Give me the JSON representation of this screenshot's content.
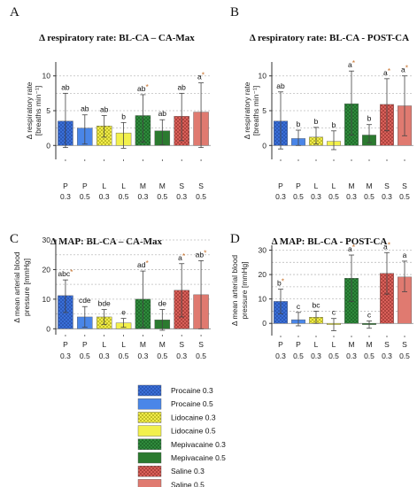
{
  "panels": [
    {
      "letter": "A",
      "title": "Δ respiratory rate: BL-CA – CA-Max",
      "ylabel": [
        "Δ respiratory rate",
        "[breaths min⁻¹]"
      ],
      "ylim": [
        -2,
        12
      ],
      "yticks": [
        0,
        5,
        10
      ],
      "chart_data": {
        "type": "bar",
        "categories": [
          "P 0.3",
          "P 0.5",
          "L 0.3",
          "L 0.5",
          "M 0.3",
          "M 0.5",
          "S 0.3",
          "S 0.5"
        ],
        "values": [
          3.5,
          2.5,
          2.8,
          1.8,
          4.3,
          2.1,
          4.2,
          4.8
        ],
        "err_low": [
          -0.3,
          0.2,
          1.2,
          -0.4,
          0.5,
          0.1,
          0.7,
          -0.3
        ],
        "err_high": [
          7.5,
          4.4,
          4.3,
          3.3,
          7.3,
          3.7,
          7.5,
          9.0
        ],
        "labels": [
          "ab",
          "ab",
          "ab",
          "b",
          "ab",
          "ab",
          "ab",
          "a"
        ],
        "stars": [
          false,
          false,
          false,
          false,
          true,
          false,
          false,
          true
        ]
      }
    },
    {
      "letter": "B",
      "title": "Δ respiratory rate: BL-CA - POST-CA",
      "ylabel": [
        "Δ respiratory rate",
        "[breaths min⁻¹]"
      ],
      "ylim": [
        -2,
        12
      ],
      "yticks": [
        0,
        5,
        10
      ],
      "chart_data": {
        "type": "bar",
        "categories": [
          "P 0.3",
          "P 0.5",
          "L 0.3",
          "L 0.5",
          "M 0.3",
          "M 0.5",
          "S 0.3",
          "S 0.5"
        ],
        "values": [
          3.5,
          1.0,
          1.2,
          0.6,
          6.0,
          1.5,
          5.9,
          5.7
        ],
        "err_low": [
          -0.5,
          0.0,
          0.2,
          -0.6,
          1.5,
          0.4,
          2.1,
          1.4
        ],
        "err_high": [
          7.7,
          2.2,
          2.6,
          2.1,
          10.7,
          3.0,
          9.6,
          10.0
        ],
        "labels": [
          "ab",
          "b",
          "b",
          "b",
          "a",
          "b",
          "a",
          "a"
        ],
        "stars": [
          false,
          false,
          false,
          false,
          true,
          false,
          true,
          true
        ]
      }
    },
    {
      "letter": "C",
      "title": "Δ MAP: BL-CA – CA-Max",
      "ylabel": [
        "Δ mean arterial blood",
        "pressure [mmHg]"
      ],
      "ylim": [
        -2,
        30
      ],
      "yticks": [
        0,
        10,
        20,
        30
      ],
      "chart_data": {
        "type": "bar",
        "categories": [
          "P 0.3",
          "P 0.5",
          "L 0.3",
          "L 0.5",
          "M 0.3",
          "M 0.5",
          "S 0.3",
          "S 0.5"
        ],
        "values": [
          11.2,
          4.0,
          4.0,
          2.0,
          10.0,
          3.0,
          13.0,
          11.5
        ],
        "err_low": [
          5.5,
          0.5,
          1.5,
          0.5,
          0.5,
          -0.5,
          4.0,
          0.0
        ],
        "err_high": [
          16.5,
          7.5,
          6.5,
          3.5,
          19.5,
          6.5,
          22.0,
          23.0
        ],
        "labels": [
          "abc",
          "cde",
          "bde",
          "e",
          "ad",
          "de",
          "a",
          "ab"
        ],
        "stars": [
          true,
          false,
          false,
          false,
          true,
          false,
          true,
          true
        ]
      }
    },
    {
      "letter": "D",
      "title": "Δ MAP:    BL-CA - POST-CA",
      "ylabel": [
        "Δ mean arterial blood",
        "pressure [mmHg]"
      ],
      "ylim": [
        -5,
        32
      ],
      "yticks": [
        0,
        10,
        20,
        30
      ],
      "chart_data": {
        "type": "bar",
        "categories": [
          "P 0.3",
          "P 0.5",
          "L 0.3",
          "L 0.5",
          "M 0.3",
          "M 0.5",
          "S 0.3",
          "S 0.5"
        ],
        "values": [
          9.0,
          1.5,
          2.5,
          -0.5,
          18.5,
          -0.5,
          20.5,
          19.0
        ],
        "err_low": [
          4.0,
          -1.0,
          0.0,
          -3.0,
          9.0,
          -2.0,
          12.0,
          13.0
        ],
        "err_high": [
          14.0,
          4.5,
          5.0,
          2.0,
          28.0,
          1.0,
          29.0,
          25.5
        ],
        "labels": [
          "b",
          "c",
          "bc",
          "c",
          "a",
          "c",
          "a",
          "a"
        ],
        "stars": [
          true,
          false,
          false,
          false,
          true,
          false,
          true,
          false
        ]
      }
    }
  ],
  "groups": [
    {
      "name": "Procaine 0.3",
      "color": "#3a6fd8",
      "pattern": "dots",
      "patcolor": "#1b3e8f"
    },
    {
      "name": "Procaine 0.5",
      "color": "#4a86e8",
      "pattern": "none"
    },
    {
      "name": "Lidocaine 0.3",
      "color": "#f0ec4a",
      "pattern": "dots",
      "patcolor": "#8a8600"
    },
    {
      "name": "Lidocaine 0.5",
      "color": "#f2f04c",
      "pattern": "none"
    },
    {
      "name": "Mepivacaine 0.3",
      "color": "#2f8a3c",
      "pattern": "dots",
      "patcolor": "#0f4a18"
    },
    {
      "name": "Mepivacaine 0.5",
      "color": "#2b7a2f",
      "pattern": "none"
    },
    {
      "name": "Saline 0.3",
      "color": "#d9605a",
      "pattern": "dots",
      "patcolor": "#7a1f1a"
    },
    {
      "name": "Saline 0.5",
      "color": "#e07a70",
      "pattern": "none"
    }
  ],
  "colors": {
    "grid": "#bdbdbd",
    "errbar": "#444444",
    "star": "#c8702a"
  }
}
